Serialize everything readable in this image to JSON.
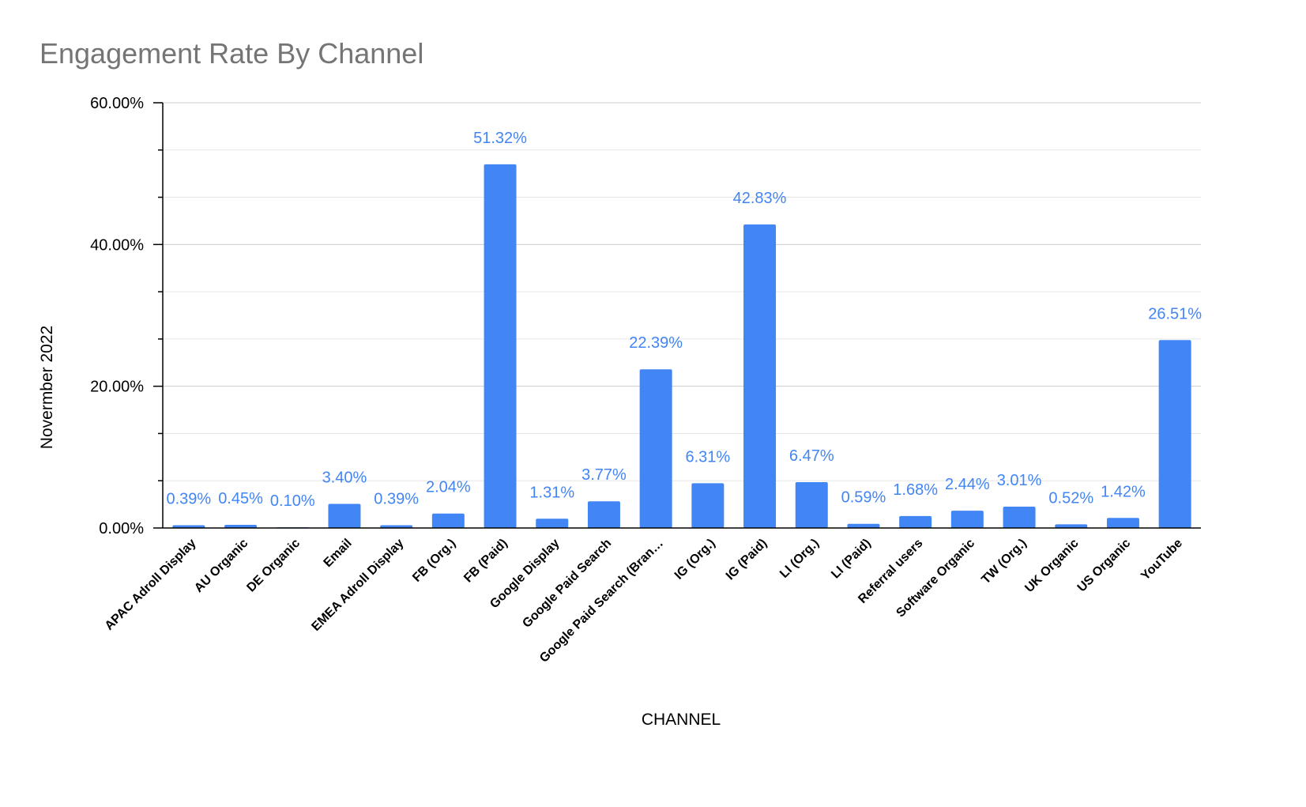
{
  "chart_data": {
    "type": "bar",
    "title": "Engagement Rate By Channel",
    "xlabel": "CHANNEL",
    "ylabel": "Novermber 2022",
    "ylim": [
      0,
      60
    ],
    "y_ticks": [
      "0.00%",
      "20.00%",
      "40.00%",
      "60.00%"
    ],
    "grid": true,
    "legend": "none",
    "bar_color": "#4285f4",
    "label_color": "#4285f4",
    "categories": [
      "APAC Adroll Display",
      "AU Organic",
      "DE Organic",
      "Email",
      "EMEA Adroll Display",
      "FB (Org.)",
      "FB (Paid)",
      "Google Display",
      "Google Paid Search",
      "Google Paid Search (Bran…",
      "IG (Org.)",
      "IG (Paid)",
      "LI (Org.)",
      "LI (Paid)",
      "Referral users",
      "Software Organic",
      "TW (Org.)",
      "UK Organic",
      "US Organic",
      "YouTube"
    ],
    "values": [
      0.39,
      0.45,
      0.1,
      3.4,
      0.39,
      2.04,
      51.32,
      1.31,
      3.77,
      22.39,
      6.31,
      42.83,
      6.47,
      0.59,
      1.68,
      2.44,
      3.01,
      0.52,
      1.42,
      26.51
    ],
    "data_labels": [
      "0.39%",
      "0.45%",
      "0.10%",
      "3.40%",
      "0.39%",
      "2.04%",
      "51.32%",
      "1.31%",
      "3.77%",
      "22.39%",
      "6.31%",
      "42.83%",
      "6.47%",
      "0.59%",
      "1.68%",
      "2.44%",
      "3.01%",
      "0.52%",
      "1.42%",
      "26.51%"
    ]
  }
}
